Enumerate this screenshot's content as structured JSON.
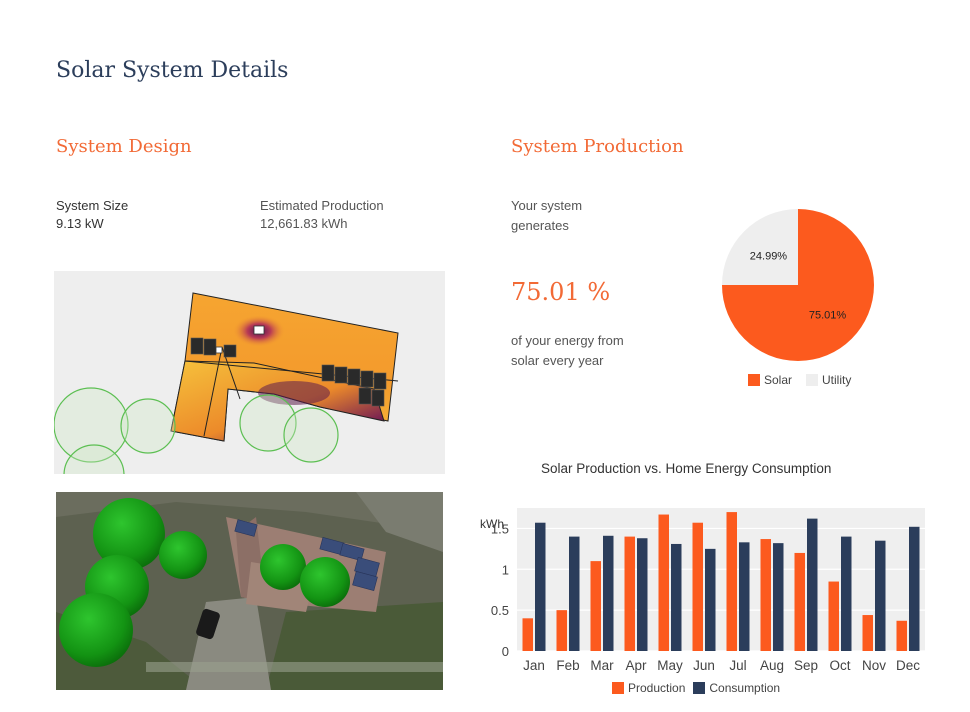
{
  "page": {
    "title": "Solar System Details"
  },
  "design": {
    "title": "System Design",
    "size_label": "System Size",
    "size_value": "9.13 kW",
    "production_label": "Estimated Production",
    "production_value": "12,661.83 kWh"
  },
  "production": {
    "title": "System Production",
    "intro_line1": "Your system",
    "intro_line2": "generates",
    "percent": "75.01 %",
    "outro_line1": "of your energy from",
    "outro_line2": "solar every year"
  },
  "colors": {
    "accent": "#f26a36",
    "navy": "#2c3e5b",
    "solar": "#fc5a1e",
    "utility": "#eeeeee",
    "production": "#fc5a1e",
    "consumption": "#2b3d5b",
    "tree": "#1e9e1e"
  },
  "chart_data": [
    {
      "type": "pie",
      "labels": [
        "Solar",
        "Utility"
      ],
      "values": [
        75.01,
        24.99
      ],
      "slice_labels": [
        "75.01%",
        "24.99%"
      ],
      "legend_position": "bottom"
    },
    {
      "type": "bar",
      "title": "Solar Production vs. Home Energy Consumption",
      "ylabel": "kWh",
      "categories": [
        "Jan",
        "Feb",
        "Mar",
        "Apr",
        "May",
        "Jun",
        "Jul",
        "Aug",
        "Sep",
        "Oct",
        "Nov",
        "Dec"
      ],
      "series": [
        {
          "name": "Production",
          "values": [
            0.4,
            0.5,
            1.1,
            1.4,
            1.67,
            1.57,
            1.7,
            1.37,
            1.2,
            0.85,
            0.44,
            0.37
          ]
        },
        {
          "name": "Consumption",
          "values": [
            1.57,
            1.4,
            1.41,
            1.38,
            1.31,
            1.25,
            1.33,
            1.32,
            1.62,
            1.4,
            1.35,
            1.52
          ]
        }
      ],
      "yticks": [
        "0",
        "0.5",
        "1",
        "1.5"
      ],
      "ylim": [
        0,
        1.75
      ],
      "grid": true,
      "legend_position": "bottom"
    }
  ]
}
